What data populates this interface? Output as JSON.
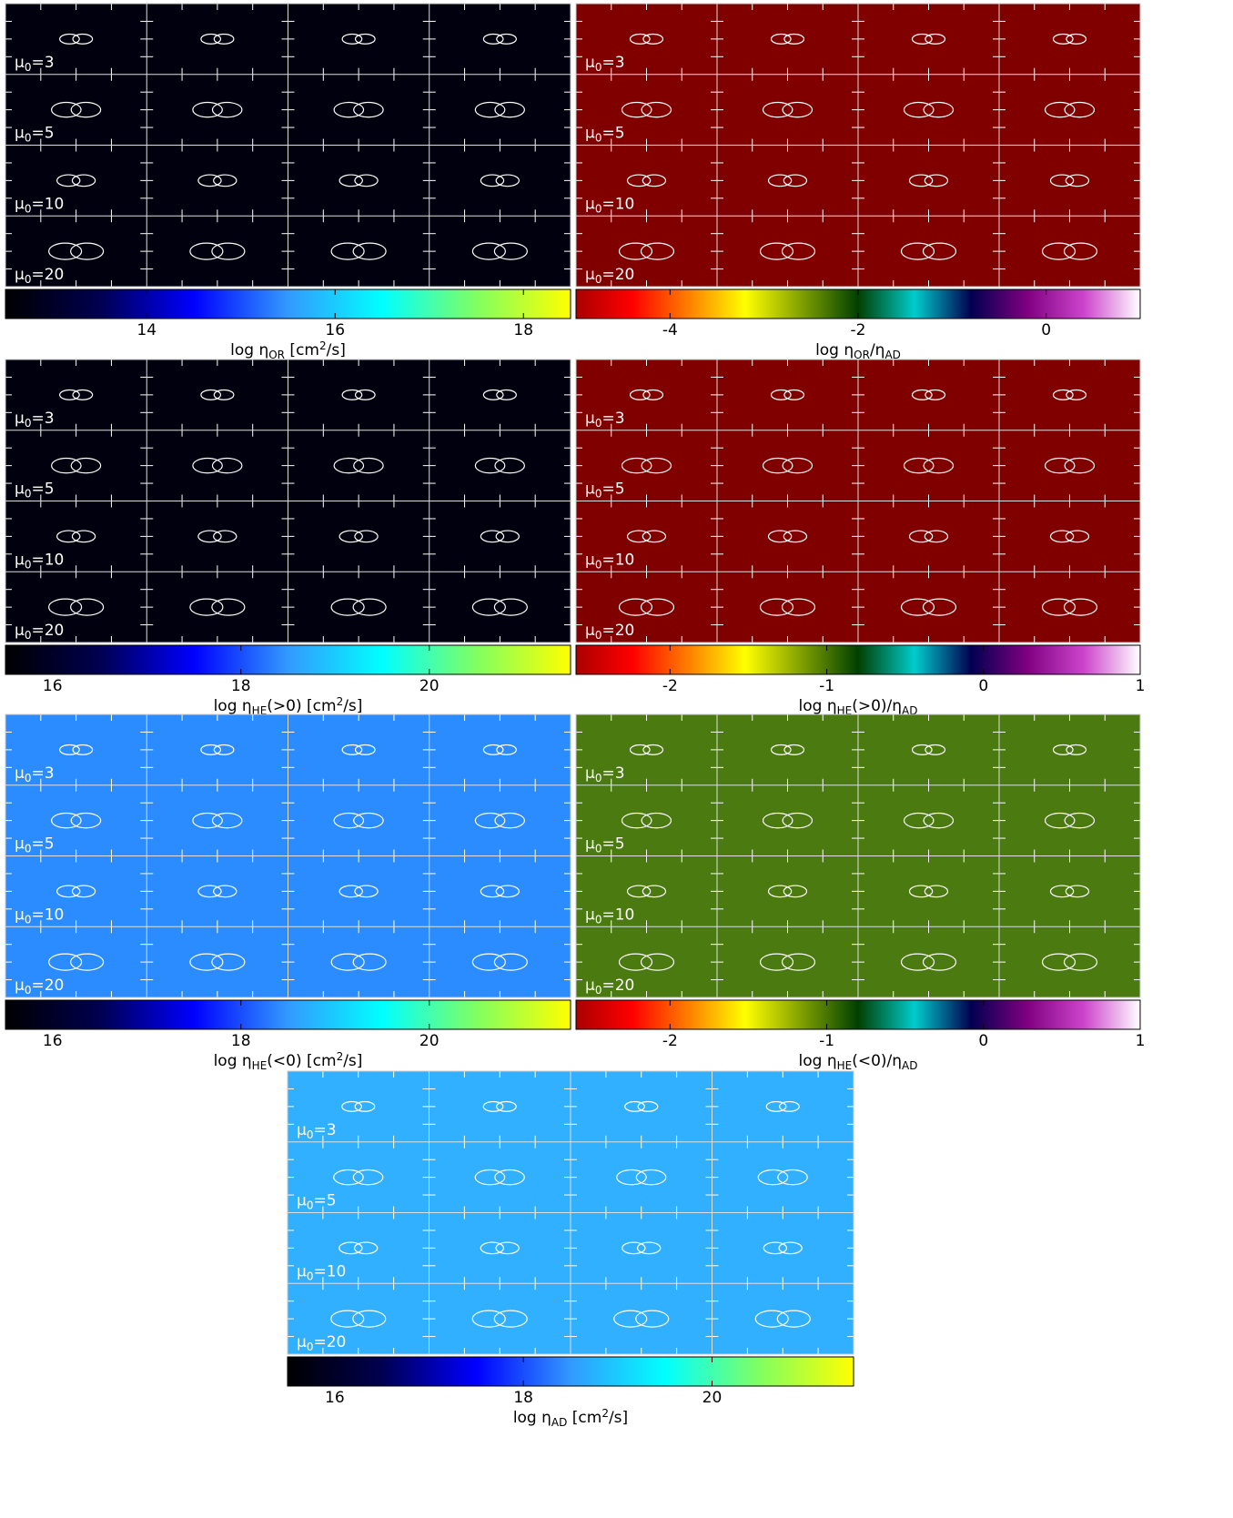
{
  "row_labels": [
    {
      "mu": "μ",
      "sub": "0",
      "rest": "=3"
    },
    {
      "mu": "μ",
      "sub": "0",
      "rest": "=5"
    },
    {
      "mu": "μ",
      "sub": "0",
      "rest": "=10"
    },
    {
      "mu": "μ",
      "sub": "0",
      "rest": "=20"
    }
  ],
  "panels": [
    {
      "tile_color": "#00000f",
      "colorbar": {
        "lim": [
          12.5,
          18.5
        ],
        "ticks": [
          14,
          16,
          18
        ],
        "colormap": [
          "#000000",
          "#000050",
          "#0000ff",
          "#3399ff",
          "#00ffff",
          "#80ff60",
          "#ffff00"
        ]
      },
      "label": [
        {
          "text": "log η"
        },
        {
          "text": "OR",
          "sub": true
        },
        {
          "text": " [cm"
        },
        {
          "text": "2",
          "sup": true
        },
        {
          "text": "/s]"
        }
      ]
    },
    {
      "tile_color": "#800000",
      "colorbar": {
        "lim": [
          -5,
          1
        ],
        "ticks": [
          -4,
          -2,
          0
        ],
        "colormap": [
          "#aa0000",
          "#ff0000",
          "#ff8000",
          "#ffff00",
          "#80a000",
          "#004000",
          "#00cccc",
          "#000050",
          "#800080",
          "#cc44cc",
          "#ffffff"
        ]
      },
      "label": [
        {
          "text": "log η"
        },
        {
          "text": "OR",
          "sub": true
        },
        {
          "text": "/η"
        },
        {
          "text": "AD",
          "sub": true
        }
      ]
    },
    {
      "tile_color": "#00000f",
      "colorbar": {
        "lim": [
          15.5,
          21.5
        ],
        "ticks": [
          16,
          18,
          20
        ],
        "colormap": [
          "#000000",
          "#000050",
          "#0000ff",
          "#3399ff",
          "#00ffff",
          "#80ff60",
          "#ffff00"
        ]
      },
      "label": [
        {
          "text": "log η"
        },
        {
          "text": "HE",
          "sub": true
        },
        {
          "text": "(>0) [cm"
        },
        {
          "text": "2",
          "sup": true
        },
        {
          "text": "/s]"
        }
      ]
    },
    {
      "tile_color": "#800000",
      "colorbar": {
        "lim": [
          -2.6,
          1
        ],
        "ticks": [
          -2,
          -1,
          0,
          1
        ],
        "colormap": [
          "#aa0000",
          "#ff0000",
          "#ff8000",
          "#ffff00",
          "#80a000",
          "#004000",
          "#00cccc",
          "#000050",
          "#800080",
          "#cc44cc",
          "#ffffff"
        ]
      },
      "label": [
        {
          "text": "log η"
        },
        {
          "text": "HE",
          "sub": true
        },
        {
          "text": "(>0)/η"
        },
        {
          "text": "AD",
          "sub": true
        }
      ]
    },
    {
      "tile_color": "#2a8cff",
      "colorbar": {
        "lim": [
          15.5,
          21.5
        ],
        "ticks": [
          16,
          18,
          20
        ],
        "colormap": [
          "#000000",
          "#000050",
          "#0000ff",
          "#3399ff",
          "#00ffff",
          "#80ff60",
          "#ffff00"
        ]
      },
      "label": [
        {
          "text": "log η"
        },
        {
          "text": "HE",
          "sub": true
        },
        {
          "text": "(<0) [cm"
        },
        {
          "text": "2",
          "sup": true
        },
        {
          "text": "/s]"
        }
      ]
    },
    {
      "tile_color": "#4a7a10",
      "colorbar": {
        "lim": [
          -2.6,
          1
        ],
        "ticks": [
          -2,
          -1,
          0,
          1
        ],
        "colormap": [
          "#aa0000",
          "#ff0000",
          "#ff8000",
          "#ffff00",
          "#80a000",
          "#004000",
          "#00cccc",
          "#000050",
          "#800080",
          "#cc44cc",
          "#ffffff"
        ]
      },
      "label": [
        {
          "text": "log η"
        },
        {
          "text": "HE",
          "sub": true
        },
        {
          "text": "(<0)/η"
        },
        {
          "text": "AD",
          "sub": true
        }
      ]
    },
    {
      "tile_color": "#30b0ff",
      "colorbar": {
        "lim": [
          15.5,
          21.5
        ],
        "ticks": [
          16,
          18,
          20
        ],
        "colormap": [
          "#000000",
          "#000050",
          "#0000ff",
          "#3399ff",
          "#00ffff",
          "#80ff60",
          "#ffff00"
        ]
      },
      "label": [
        {
          "text": "log η"
        },
        {
          "text": "AD",
          "sub": true
        },
        {
          "text": " [cm"
        },
        {
          "text": "2",
          "sup": true
        },
        {
          "text": "/s]"
        }
      ]
    }
  ]
}
